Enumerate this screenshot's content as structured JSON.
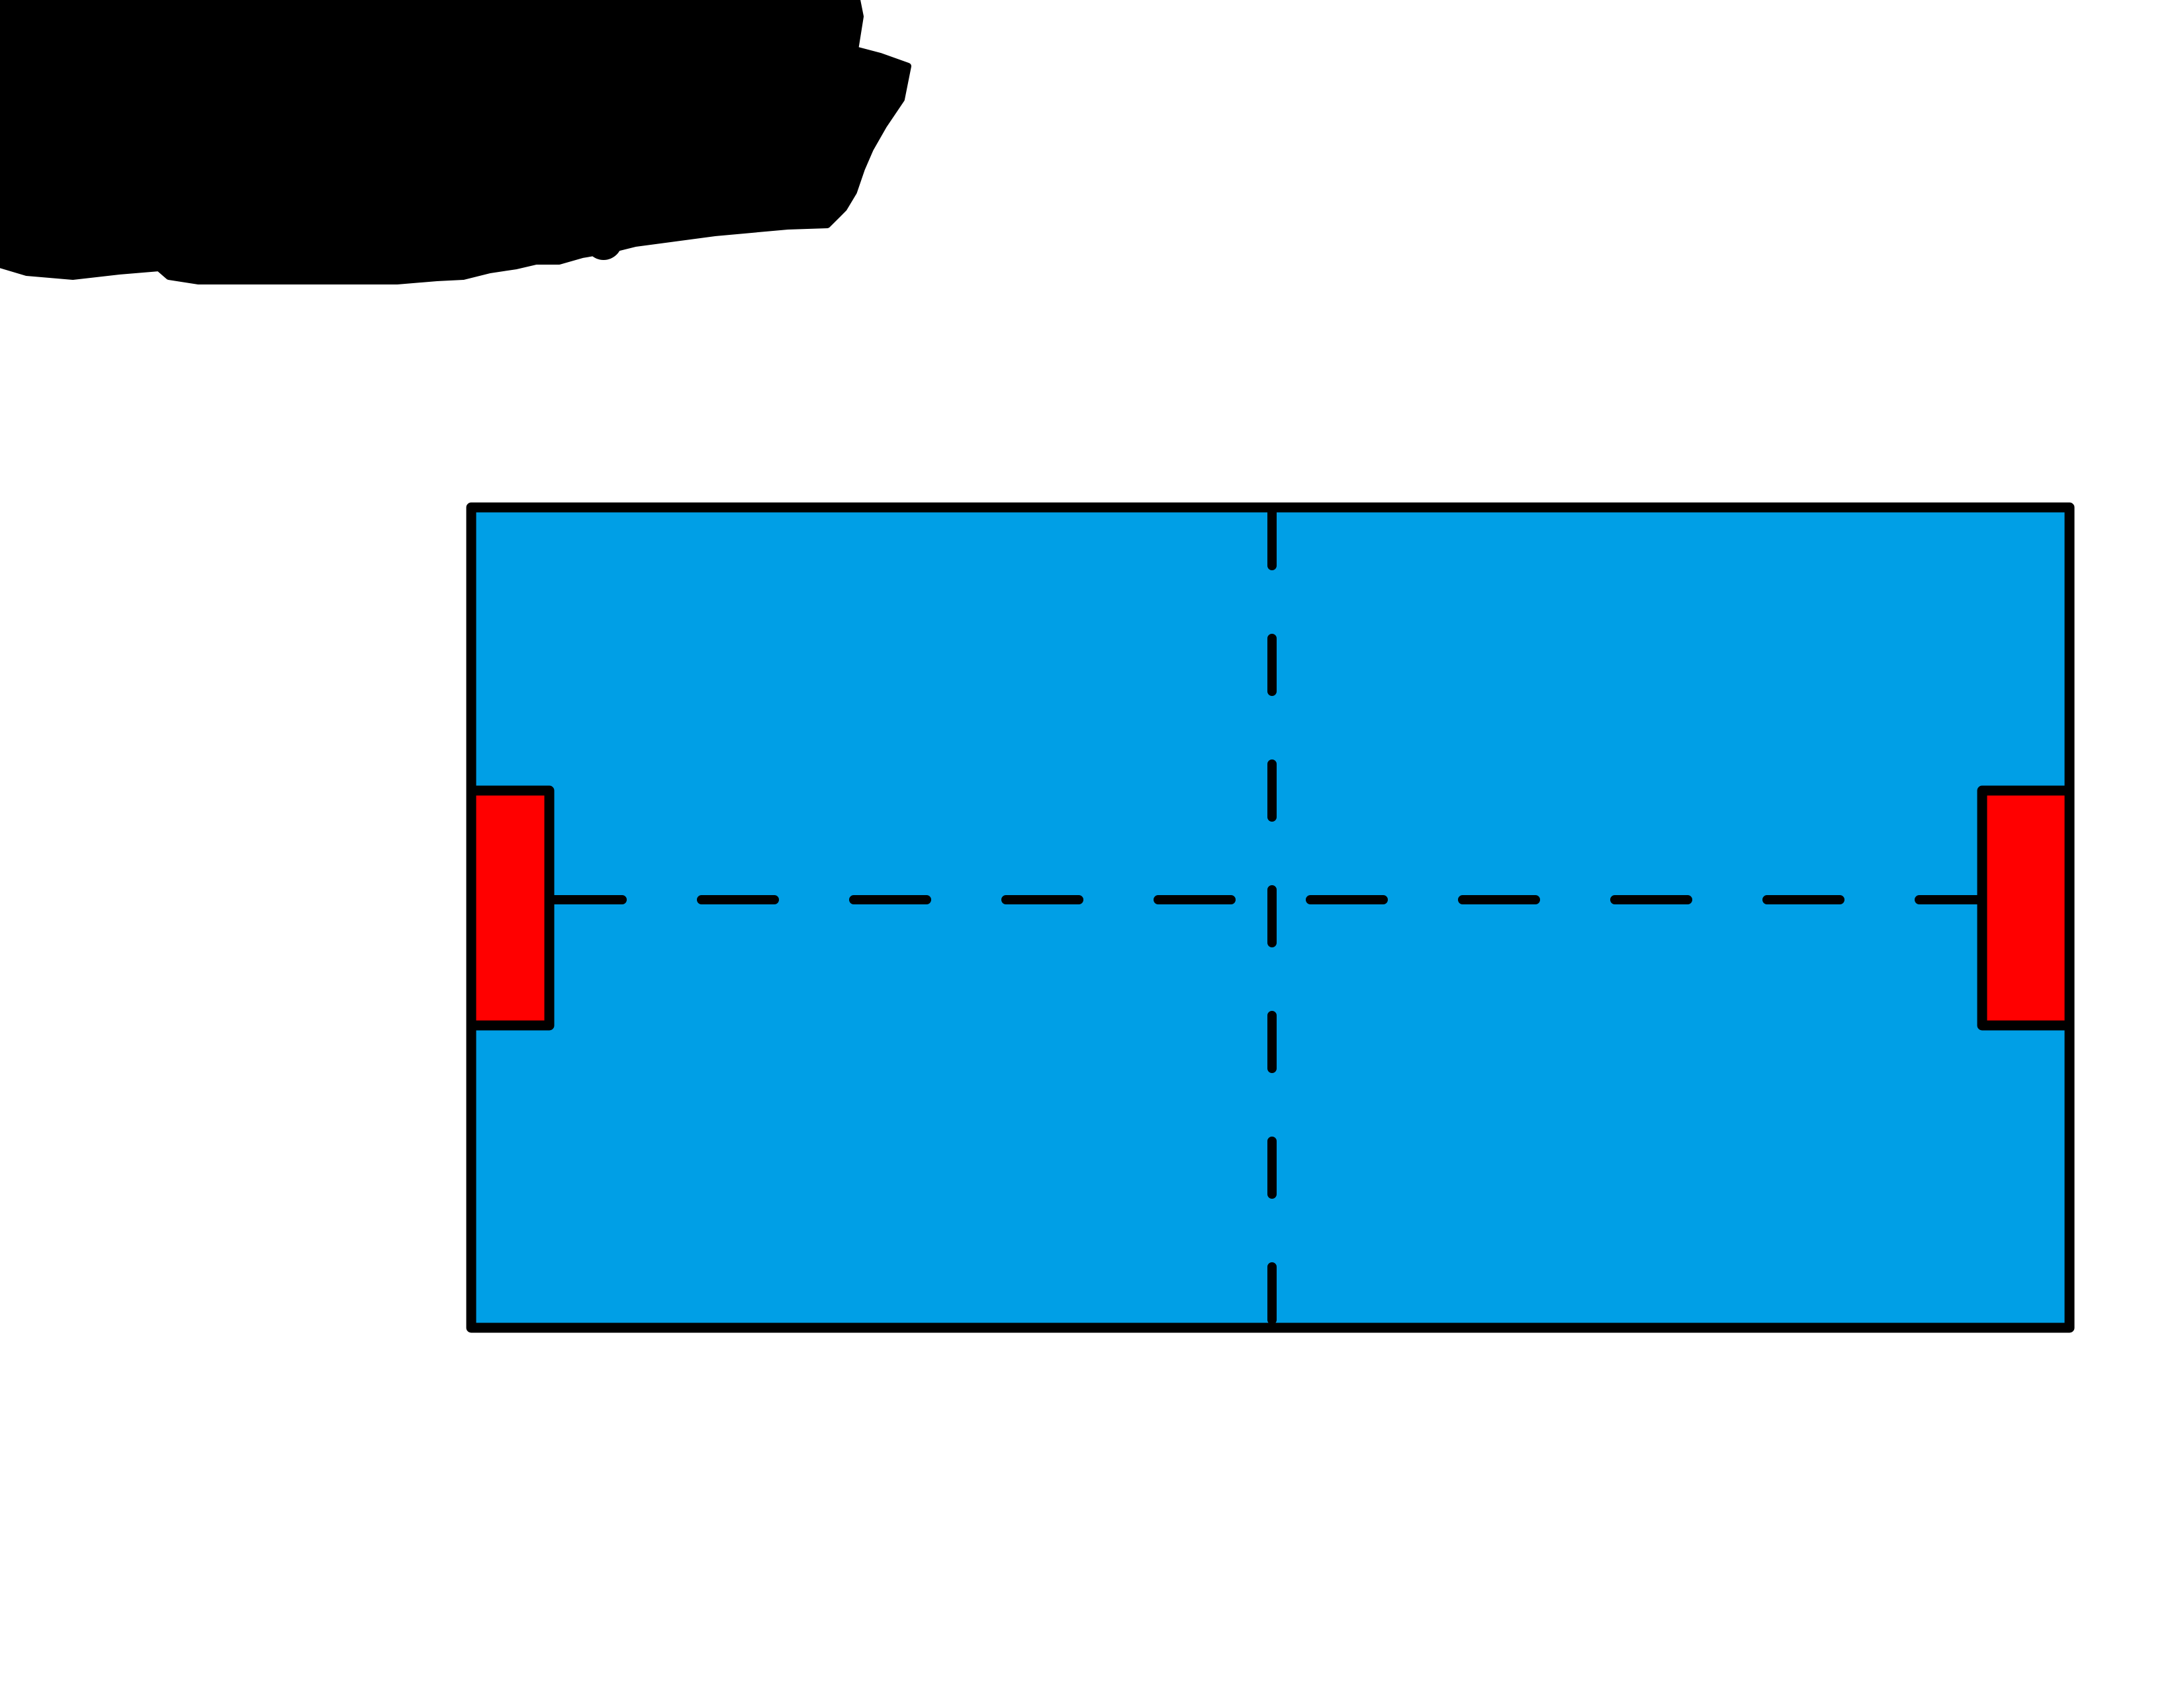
{
  "diagram": {
    "kind": "field-schematic",
    "colors": {
      "background": "#FFFFFF",
      "field": "#009FE6",
      "goal": "#FF0000",
      "outline": "#000000",
      "redaction": "#000000"
    },
    "elements": {
      "redaction": "scribble-redaction",
      "field": "playing-field",
      "halfway_line": "dashed-vertical-line",
      "center_line": "dashed-horizontal-line",
      "goal_left": "left-goal-box",
      "goal_right": "right-goal-box"
    }
  }
}
